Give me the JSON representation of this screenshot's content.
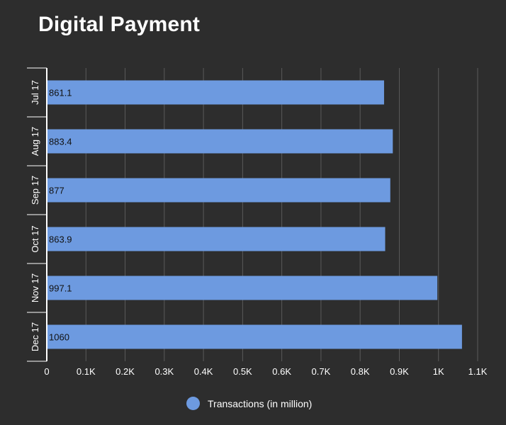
{
  "chart_data": {
    "type": "bar",
    "orientation": "horizontal",
    "title": "Digital Payment",
    "categories": [
      "Jul 17",
      "Aug 17",
      "Sep 17",
      "Oct 17",
      "Nov 17",
      "Dec 17"
    ],
    "series": [
      {
        "name": "Transactions (in million)",
        "values": [
          861.1,
          883.4,
          877,
          863.9,
          997.1,
          1060
        ],
        "value_labels": [
          "861.1",
          "883.4",
          "877",
          "863.9",
          "997.1",
          "1060"
        ],
        "color": "#6d9ae0"
      }
    ],
    "x_ticks": [
      0,
      100,
      200,
      300,
      400,
      500,
      600,
      700,
      800,
      900,
      1000,
      1100
    ],
    "x_tick_labels": [
      "0",
      "0.1K",
      "0.2K",
      "0.3K",
      "0.4K",
      "0.5K",
      "0.6K",
      "0.7K",
      "0.8K",
      "0.9K",
      "1K",
      "1.1K"
    ],
    "xlim": [
      0,
      1100
    ],
    "xlabel": "",
    "ylabel": "",
    "grid": true,
    "legend_position": "bottom"
  },
  "colors": {
    "background": "#2d2d2d",
    "bar": "#6d9ae0",
    "gridline": "#5a5a5a",
    "axis": "#ffffff",
    "text": "#ffffff",
    "bar_label": "#111111"
  }
}
